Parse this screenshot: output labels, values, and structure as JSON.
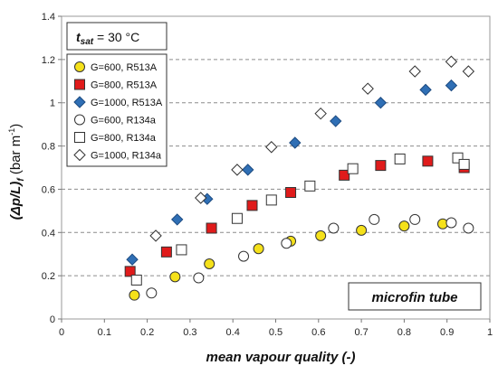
{
  "chart_data": {
    "type": "scatter",
    "title": "",
    "xlabel": "mean vapour quality (-)",
    "ylabel_prefix": "(Δp/L)",
    "ylabel_sub": "f",
    "ylabel_unit": " (bar m",
    "ylabel_sup": "-1",
    "ylabel_close": ")",
    "xlim": [
      0,
      1
    ],
    "ylim": [
      0,
      1.4
    ],
    "xticks": [
      "0",
      "0.1",
      "0.2",
      "0.3",
      "0.4",
      "0.5",
      "0.6",
      "0.7",
      "0.8",
      "0.9",
      "1"
    ],
    "yticks": [
      "0",
      "0.2",
      "0.4",
      "0.6",
      "0.8",
      "1",
      "1.2",
      "1.4"
    ],
    "grid": "horizontal dashed",
    "legend_position": "top-left",
    "annotation_tsat": {
      "t": "t",
      "sub": "sat",
      "rest": " = 30 °C"
    },
    "annotation_tube": "microfin tube",
    "series": [
      {
        "name": "G=600, R513A",
        "marker": "circle",
        "fill": "#f5e11a",
        "stroke": "#333333",
        "points": [
          [
            0.17,
            0.11
          ],
          [
            0.265,
            0.195
          ],
          [
            0.345,
            0.255
          ],
          [
            0.46,
            0.325
          ],
          [
            0.535,
            0.36
          ],
          [
            0.605,
            0.385
          ],
          [
            0.7,
            0.41
          ],
          [
            0.8,
            0.43
          ],
          [
            0.89,
            0.44
          ]
        ]
      },
      {
        "name": "G=800, R513A",
        "marker": "square",
        "fill": "#e01b1b",
        "stroke": "#333333",
        "points": [
          [
            0.16,
            0.22
          ],
          [
            0.245,
            0.31
          ],
          [
            0.35,
            0.42
          ],
          [
            0.445,
            0.525
          ],
          [
            0.535,
            0.585
          ],
          [
            0.66,
            0.665
          ],
          [
            0.745,
            0.71
          ],
          [
            0.855,
            0.73
          ],
          [
            0.94,
            0.7
          ]
        ]
      },
      {
        "name": "G=1000, R513A",
        "marker": "diamond",
        "fill": "#2f6fb5",
        "stroke": "#1c4a80",
        "points": [
          [
            0.165,
            0.275
          ],
          [
            0.27,
            0.46
          ],
          [
            0.34,
            0.555
          ],
          [
            0.435,
            0.69
          ],
          [
            0.545,
            0.815
          ],
          [
            0.64,
            0.915
          ],
          [
            0.745,
            1.0
          ],
          [
            0.85,
            1.06
          ],
          [
            0.91,
            1.08
          ]
        ]
      },
      {
        "name": "G=600, R134a",
        "marker": "circle",
        "fill": "#ffffff",
        "stroke": "#333333",
        "points": [
          [
            0.21,
            0.12
          ],
          [
            0.32,
            0.19
          ],
          [
            0.425,
            0.29
          ],
          [
            0.525,
            0.35
          ],
          [
            0.635,
            0.42
          ],
          [
            0.73,
            0.46
          ],
          [
            0.825,
            0.46
          ],
          [
            0.91,
            0.445
          ],
          [
            0.95,
            0.42
          ]
        ]
      },
      {
        "name": "G=800, R134a",
        "marker": "square",
        "fill": "#ffffff",
        "stroke": "#333333",
        "points": [
          [
            0.175,
            0.18
          ],
          [
            0.28,
            0.32
          ],
          [
            0.41,
            0.465
          ],
          [
            0.49,
            0.55
          ],
          [
            0.58,
            0.615
          ],
          [
            0.68,
            0.695
          ],
          [
            0.79,
            0.74
          ],
          [
            0.925,
            0.745
          ],
          [
            0.94,
            0.715
          ]
        ]
      },
      {
        "name": "G=1000, R134a",
        "marker": "diamond",
        "fill": "#ffffff",
        "stroke": "#333333",
        "points": [
          [
            0.22,
            0.385
          ],
          [
            0.325,
            0.56
          ],
          [
            0.41,
            0.69
          ],
          [
            0.49,
            0.795
          ],
          [
            0.605,
            0.95
          ],
          [
            0.715,
            1.065
          ],
          [
            0.825,
            1.145
          ],
          [
            0.91,
            1.19
          ],
          [
            0.95,
            1.145
          ]
        ]
      }
    ]
  }
}
